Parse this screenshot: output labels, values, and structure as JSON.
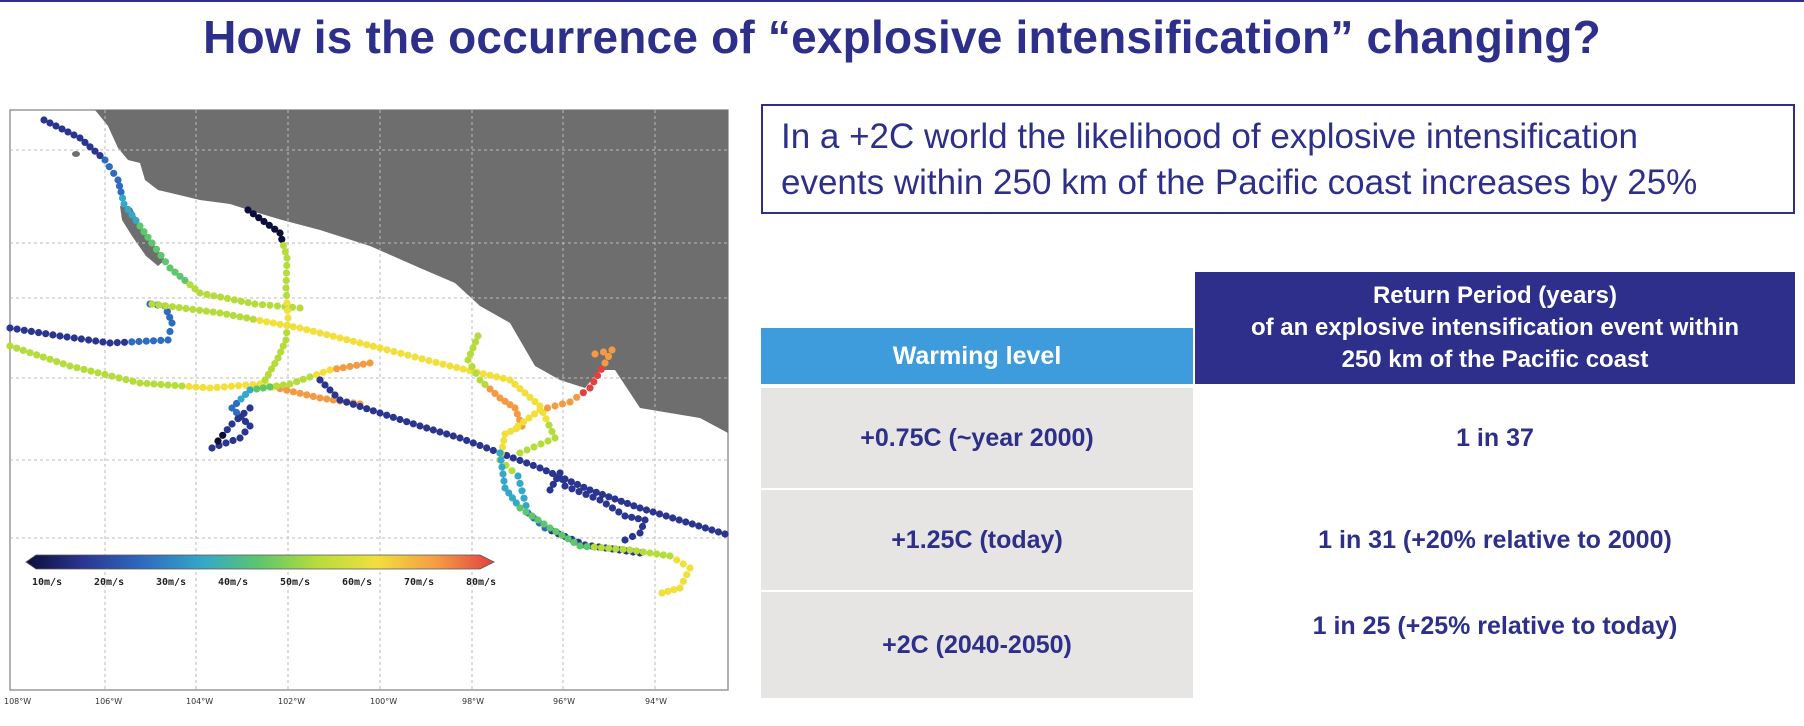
{
  "title": "How is the occurrence of “explosive intensification” changing?",
  "callout": {
    "line1": "In a +2C world the likelihood of explosive intensification",
    "line2": "events within 250 km of the Pacific coast increases by 25%"
  },
  "map": {
    "colorbar_labels": [
      "10m/s",
      "20m/s",
      "30m/s",
      "40m/s",
      "50m/s",
      "60m/s",
      "70m/s",
      "80m/s"
    ],
    "lon_labels": [
      "108°W",
      "106°W",
      "104°W",
      "102°W",
      "100°W",
      "98°W",
      "96°W",
      "94°W"
    ],
    "colors": {
      "land": "#6e6e6e",
      "ocean": "#ffffff",
      "speed_scale": [
        "#0d0d3a",
        "#2a3590",
        "#2f6bbf",
        "#35a8c8",
        "#5ec66d",
        "#b6dc3c",
        "#f1df3c",
        "#f49a45",
        "#e4403f"
      ]
    }
  },
  "table": {
    "header_period": "Return Period (years)\nof an explosive intensification  event within\n250 km of the Pacific coast",
    "header_level": "Warming level",
    "rows": [
      {
        "level": "+0.75C (~year 2000)",
        "period": "1 in 37"
      },
      {
        "level": "+1.25C (today)",
        "period": "1 in 31 (+20% relative to 2000)"
      },
      {
        "level": "+2C (2040-2050)",
        "period": "1 in 25 (+25% relative to today)"
      }
    ]
  }
}
